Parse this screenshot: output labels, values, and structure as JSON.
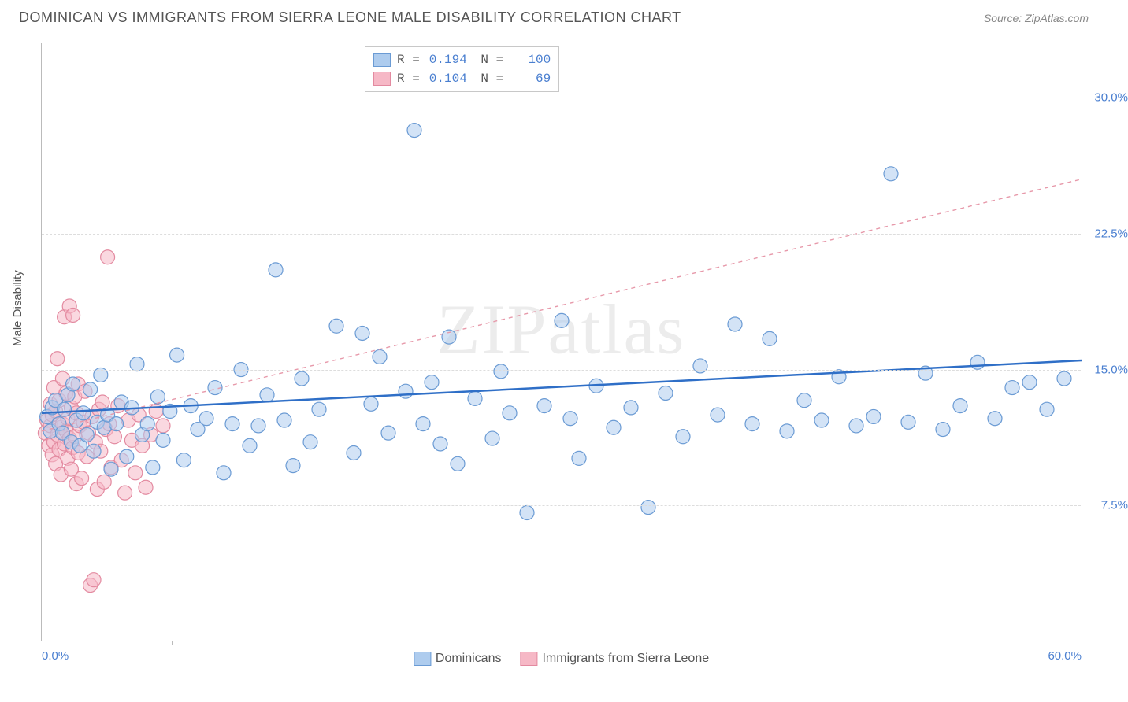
{
  "title": "DOMINICAN VS IMMIGRANTS FROM SIERRA LEONE MALE DISABILITY CORRELATION CHART",
  "source": "Source: ZipAtlas.com",
  "watermark": "ZIPatlas",
  "ylabel": "Male Disability",
  "chart": {
    "type": "scatter",
    "xlim": [
      0,
      60
    ],
    "ylim": [
      0,
      33
    ],
    "xtick_labels": [
      {
        "pos": 0,
        "label": "0.0%"
      },
      {
        "pos": 60,
        "label": "60.0%"
      }
    ],
    "xticks_minor": [
      7.5,
      15,
      22.5,
      30,
      37.5,
      45,
      52.5
    ],
    "ytick_labels": [
      {
        "pos": 7.5,
        "label": "7.5%"
      },
      {
        "pos": 15.0,
        "label": "15.0%"
      },
      {
        "pos": 22.5,
        "label": "22.5%"
      },
      {
        "pos": 30.0,
        "label": "30.0%"
      }
    ],
    "grid_color": "#dddddd",
    "background": "#ffffff",
    "marker_radius": 9,
    "marker_stroke_width": 1.2,
    "series": [
      {
        "name": "Dominicans",
        "fill": "#aeccee",
        "fill_opacity": 0.55,
        "stroke": "#6b9bd4",
        "R": "0.194",
        "N": "100",
        "trend": {
          "x1": 0,
          "y1": 12.6,
          "x2": 60,
          "y2": 15.5,
          "color": "#2f6fc7",
          "width": 2.5,
          "dash": "none"
        },
        "points": [
          [
            0.3,
            12.4
          ],
          [
            0.5,
            11.6
          ],
          [
            0.6,
            12.9
          ],
          [
            0.8,
            13.3
          ],
          [
            1.0,
            12.0
          ],
          [
            1.2,
            11.5
          ],
          [
            1.3,
            12.8
          ],
          [
            1.5,
            13.6
          ],
          [
            1.7,
            11.0
          ],
          [
            1.8,
            14.2
          ],
          [
            2.0,
            12.2
          ],
          [
            2.2,
            10.8
          ],
          [
            2.4,
            12.6
          ],
          [
            2.6,
            11.4
          ],
          [
            2.8,
            13.9
          ],
          [
            3.0,
            10.5
          ],
          [
            3.2,
            12.1
          ],
          [
            3.4,
            14.7
          ],
          [
            3.6,
            11.8
          ],
          [
            3.8,
            12.5
          ],
          [
            4.0,
            9.5
          ],
          [
            4.3,
            12.0
          ],
          [
            4.6,
            13.2
          ],
          [
            4.9,
            10.2
          ],
          [
            5.2,
            12.9
          ],
          [
            5.5,
            15.3
          ],
          [
            5.8,
            11.4
          ],
          [
            6.1,
            12.0
          ],
          [
            6.4,
            9.6
          ],
          [
            6.7,
            13.5
          ],
          [
            7.0,
            11.1
          ],
          [
            7.4,
            12.7
          ],
          [
            7.8,
            15.8
          ],
          [
            8.2,
            10.0
          ],
          [
            8.6,
            13.0
          ],
          [
            9.0,
            11.7
          ],
          [
            9.5,
            12.3
          ],
          [
            10.0,
            14.0
          ],
          [
            10.5,
            9.3
          ],
          [
            11.0,
            12.0
          ],
          [
            11.5,
            15.0
          ],
          [
            12.0,
            10.8
          ],
          [
            12.5,
            11.9
          ],
          [
            13.0,
            13.6
          ],
          [
            13.5,
            20.5
          ],
          [
            14.0,
            12.2
          ],
          [
            14.5,
            9.7
          ],
          [
            15.0,
            14.5
          ],
          [
            15.5,
            11.0
          ],
          [
            16.0,
            12.8
          ],
          [
            17.0,
            17.4
          ],
          [
            18.0,
            10.4
          ],
          [
            18.5,
            17.0
          ],
          [
            19.0,
            13.1
          ],
          [
            19.5,
            15.7
          ],
          [
            20.0,
            11.5
          ],
          [
            21.0,
            13.8
          ],
          [
            21.5,
            28.2
          ],
          [
            22.0,
            12.0
          ],
          [
            22.5,
            14.3
          ],
          [
            23.0,
            10.9
          ],
          [
            23.5,
            16.8
          ],
          [
            24.0,
            9.8
          ],
          [
            25.0,
            13.4
          ],
          [
            26.0,
            11.2
          ],
          [
            26.5,
            14.9
          ],
          [
            27.0,
            12.6
          ],
          [
            28.0,
            7.1
          ],
          [
            29.0,
            13.0
          ],
          [
            30.0,
            17.7
          ],
          [
            30.5,
            12.3
          ],
          [
            31.0,
            10.1
          ],
          [
            32.0,
            14.1
          ],
          [
            33.0,
            11.8
          ],
          [
            34.0,
            12.9
          ],
          [
            35.0,
            7.4
          ],
          [
            36.0,
            13.7
          ],
          [
            37.0,
            11.3
          ],
          [
            38.0,
            15.2
          ],
          [
            39.0,
            12.5
          ],
          [
            40.0,
            17.5
          ],
          [
            41.0,
            12.0
          ],
          [
            42.0,
            16.7
          ],
          [
            43.0,
            11.6
          ],
          [
            44.0,
            13.3
          ],
          [
            45.0,
            12.2
          ],
          [
            46.0,
            14.6
          ],
          [
            47.0,
            11.9
          ],
          [
            48.0,
            12.4
          ],
          [
            49.0,
            25.8
          ],
          [
            50.0,
            12.1
          ],
          [
            51.0,
            14.8
          ],
          [
            52.0,
            11.7
          ],
          [
            53.0,
            13.0
          ],
          [
            54.0,
            15.4
          ],
          [
            55.0,
            12.3
          ],
          [
            56.0,
            14.0
          ],
          [
            57.0,
            14.3
          ],
          [
            58.0,
            12.8
          ],
          [
            59.0,
            14.5
          ]
        ]
      },
      {
        "name": "Immigrants from Sierra Leone",
        "fill": "#f6b8c6",
        "fill_opacity": 0.55,
        "stroke": "#e38aa0",
        "R": "0.104",
        "N": "69",
        "trend": {
          "x1": 0,
          "y1": 11.6,
          "x2": 60,
          "y2": 25.5,
          "color": "#e799aa",
          "width": 1.4,
          "dash": "5,5"
        },
        "points": [
          [
            0.2,
            11.5
          ],
          [
            0.3,
            12.2
          ],
          [
            0.4,
            10.8
          ],
          [
            0.5,
            11.9
          ],
          [
            0.5,
            13.1
          ],
          [
            0.6,
            10.3
          ],
          [
            0.6,
            12.5
          ],
          [
            0.7,
            11.0
          ],
          [
            0.7,
            14.0
          ],
          [
            0.8,
            9.8
          ],
          [
            0.8,
            12.7
          ],
          [
            0.9,
            11.4
          ],
          [
            0.9,
            15.6
          ],
          [
            1.0,
            10.6
          ],
          [
            1.0,
            13.3
          ],
          [
            1.1,
            11.8
          ],
          [
            1.1,
            9.2
          ],
          [
            1.2,
            12.0
          ],
          [
            1.2,
            14.5
          ],
          [
            1.3,
            10.9
          ],
          [
            1.3,
            17.9
          ],
          [
            1.4,
            11.6
          ],
          [
            1.4,
            13.7
          ],
          [
            1.5,
            10.1
          ],
          [
            1.5,
            12.3
          ],
          [
            1.6,
            18.5
          ],
          [
            1.6,
            11.2
          ],
          [
            1.7,
            9.5
          ],
          [
            1.7,
            12.9
          ],
          [
            1.8,
            18.0
          ],
          [
            1.8,
            10.7
          ],
          [
            1.9,
            13.5
          ],
          [
            1.9,
            11.3
          ],
          [
            2.0,
            8.7
          ],
          [
            2.0,
            12.6
          ],
          [
            2.1,
            14.2
          ],
          [
            2.1,
            10.4
          ],
          [
            2.2,
            11.9
          ],
          [
            2.3,
            9.0
          ],
          [
            2.4,
            12.1
          ],
          [
            2.5,
            13.8
          ],
          [
            2.6,
            10.2
          ],
          [
            2.7,
            11.5
          ],
          [
            2.8,
            3.1
          ],
          [
            2.9,
            12.4
          ],
          [
            3.0,
            3.4
          ],
          [
            3.1,
            11.0
          ],
          [
            3.2,
            8.4
          ],
          [
            3.3,
            12.8
          ],
          [
            3.4,
            10.5
          ],
          [
            3.5,
            13.2
          ],
          [
            3.6,
            8.8
          ],
          [
            3.7,
            11.7
          ],
          [
            3.8,
            21.2
          ],
          [
            3.9,
            12.0
          ],
          [
            4.0,
            9.6
          ],
          [
            4.2,
            11.3
          ],
          [
            4.4,
            13.0
          ],
          [
            4.6,
            10.0
          ],
          [
            4.8,
            8.2
          ],
          [
            5.0,
            12.2
          ],
          [
            5.2,
            11.1
          ],
          [
            5.4,
            9.3
          ],
          [
            5.6,
            12.5
          ],
          [
            5.8,
            10.8
          ],
          [
            6.0,
            8.5
          ],
          [
            6.3,
            11.4
          ],
          [
            6.6,
            12.7
          ],
          [
            7.0,
            11.9
          ]
        ]
      }
    ]
  }
}
